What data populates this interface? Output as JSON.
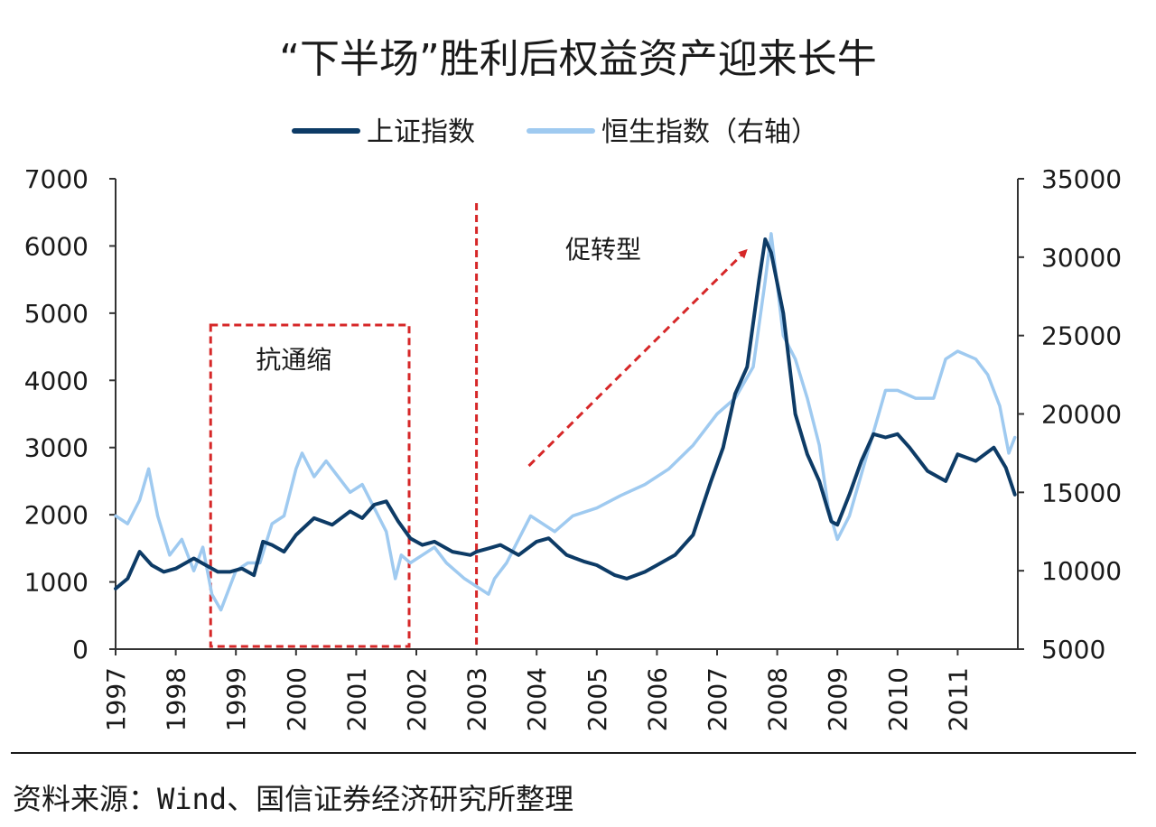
{
  "chart_data": {
    "type": "line",
    "title": "“下半场”胜利后权益资产迎来长牛",
    "x_ticks": [
      "1997",
      "1998",
      "1999",
      "2000",
      "2001",
      "2002",
      "2003",
      "2004",
      "2005",
      "2006",
      "2007",
      "2008",
      "2009",
      "2010",
      "2011"
    ],
    "x_range": [
      1997,
      2012
    ],
    "y_left_ticks": [
      "0",
      "1000",
      "2000",
      "3000",
      "4000",
      "5000",
      "6000",
      "7000"
    ],
    "y_left_range": [
      0,
      7000
    ],
    "y_right_ticks": [
      "5000",
      "10000",
      "15000",
      "20000",
      "25000",
      "30000",
      "35000"
    ],
    "y_right_range": [
      5000,
      35000
    ],
    "legend_position": "top",
    "series": [
      {
        "name": "上证指数",
        "axis": "left",
        "color": "#0d3b66",
        "x": [
          1997.0,
          1997.2,
          1997.4,
          1997.6,
          1997.8,
          1998.0,
          1998.3,
          1998.5,
          1998.7,
          1998.9,
          1999.1,
          1999.3,
          1999.45,
          1999.6,
          1999.8,
          2000.0,
          2000.3,
          2000.6,
          2000.9,
          2001.1,
          2001.3,
          2001.5,
          2001.7,
          2001.9,
          2002.1,
          2002.3,
          2002.6,
          2002.9,
          2003.0,
          2003.2,
          2003.4,
          2003.7,
          2004.0,
          2004.2,
          2004.5,
          2004.8,
          2005.0,
          2005.3,
          2005.5,
          2005.8,
          2006.0,
          2006.3,
          2006.6,
          2006.9,
          2007.1,
          2007.3,
          2007.5,
          2007.7,
          2007.8,
          2007.9,
          2008.1,
          2008.3,
          2008.5,
          2008.7,
          2008.9,
          2009.0,
          2009.2,
          2009.4,
          2009.6,
          2009.8,
          2010.0,
          2010.2,
          2010.5,
          2010.8,
          2011.0,
          2011.3,
          2011.6,
          2011.8,
          2011.95
        ],
        "values": [
          900,
          1050,
          1450,
          1250,
          1150,
          1200,
          1350,
          1250,
          1150,
          1150,
          1200,
          1100,
          1600,
          1550,
          1450,
          1700,
          1950,
          1850,
          2050,
          1950,
          2150,
          2200,
          1900,
          1650,
          1550,
          1600,
          1450,
          1400,
          1450,
          1500,
          1550,
          1400,
          1600,
          1650,
          1400,
          1300,
          1250,
          1100,
          1050,
          1150,
          1250,
          1400,
          1700,
          2500,
          3000,
          3800,
          4200,
          5500,
          6100,
          5900,
          5000,
          3500,
          2900,
          2500,
          1900,
          1850,
          2300,
          2800,
          3200,
          3150,
          3200,
          3000,
          2650,
          2500,
          2900,
          2800,
          3000,
          2700,
          2300
        ]
      },
      {
        "name": "恒生指数（右轴）",
        "axis": "right",
        "color": "#9fcaf0",
        "x": [
          1997.0,
          1997.2,
          1997.4,
          1997.55,
          1997.7,
          1997.9,
          1998.1,
          1998.3,
          1998.45,
          1998.6,
          1998.75,
          1999.0,
          1999.2,
          1999.4,
          1999.6,
          1999.8,
          2000.0,
          2000.1,
          2000.3,
          2000.5,
          2000.7,
          2000.9,
          2001.1,
          2001.3,
          2001.5,
          2001.65,
          2001.75,
          2001.9,
          2002.1,
          2002.3,
          2002.5,
          2002.8,
          2003.0,
          2003.2,
          2003.3,
          2003.5,
          2003.7,
          2003.9,
          2004.1,
          2004.3,
          2004.6,
          2005.0,
          2005.4,
          2005.8,
          2006.2,
          2006.6,
          2007.0,
          2007.3,
          2007.6,
          2007.8,
          2007.9,
          2008.1,
          2008.3,
          2008.5,
          2008.7,
          2008.85,
          2009.0,
          2009.2,
          2009.5,
          2009.8,
          2010.0,
          2010.3,
          2010.6,
          2010.8,
          2011.0,
          2011.3,
          2011.5,
          2011.7,
          2011.85,
          2011.95
        ],
        "values": [
          13500,
          13000,
          14500,
          16500,
          13500,
          11000,
          12000,
          10000,
          11500,
          8500,
          7500,
          10000,
          10500,
          10500,
          13000,
          13500,
          16500,
          17500,
          16000,
          17000,
          16000,
          15000,
          15500,
          14000,
          12500,
          9500,
          11000,
          10500,
          11000,
          11500,
          10500,
          9500,
          9000,
          8500,
          9500,
          10500,
          12000,
          13500,
          13000,
          12500,
          13500,
          14000,
          14800,
          15500,
          16500,
          18000,
          20000,
          21000,
          23000,
          28500,
          31500,
          25000,
          23500,
          21000,
          18000,
          14000,
          12000,
          13500,
          17500,
          21500,
          21500,
          21000,
          21000,
          23500,
          24000,
          23500,
          22500,
          20500,
          17500,
          18500
        ]
      }
    ],
    "annotations": [
      {
        "text": "抗通缩",
        "type": "box",
        "x_start": 1998.58,
        "x_end": 2001.88
      },
      {
        "text": "",
        "type": "vline",
        "x": 2003.0
      },
      {
        "text": "促转型",
        "type": "arrow",
        "x_start": 2003.9,
        "x_end": 2007.55
      }
    ],
    "source": "资料来源：Wind、国信证券经济研究所整理"
  }
}
